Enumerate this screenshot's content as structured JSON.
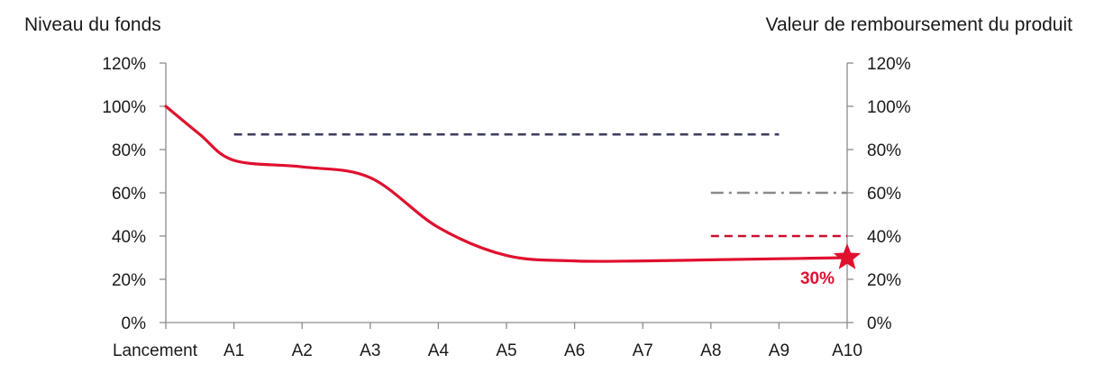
{
  "chart_data": {
    "type": "line",
    "left_axis_title": "Niveau du fonds",
    "right_axis_title": "Valeur de remboursement du produit",
    "categories": [
      "Lancement",
      "A1",
      "A2",
      "A3",
      "A4",
      "A5",
      "A6",
      "A7",
      "A8",
      "A9",
      "A10"
    ],
    "y_ticks": [
      "0%",
      "20%",
      "40%",
      "60%",
      "80%",
      "100%",
      "120%"
    ],
    "ylim": [
      0,
      120
    ],
    "grid": false,
    "series": [
      {
        "style": "solid",
        "color": "#e0102f",
        "x": [
          0,
          0.5,
          1,
          2,
          3,
          4,
          5,
          6,
          7,
          8,
          9,
          10
        ],
        "values": [
          100,
          87,
          75,
          72,
          67,
          44,
          31,
          28.5,
          28.5,
          29,
          29.5,
          30
        ]
      },
      {
        "style": "dashed",
        "color": "#3d3f5f",
        "x": [
          1,
          9
        ],
        "values": [
          87,
          87
        ]
      },
      {
        "style": "dash-dot",
        "color": "#8a8a8a",
        "x": [
          8,
          10
        ],
        "values": [
          60,
          60
        ]
      },
      {
        "style": "dashed",
        "color": "#c8102e",
        "x": [
          8,
          10
        ],
        "values": [
          40,
          40
        ]
      }
    ],
    "final_marker": {
      "x": 10,
      "value": 30,
      "label": "30%",
      "color": "#e0102f",
      "shape": "star"
    }
  }
}
